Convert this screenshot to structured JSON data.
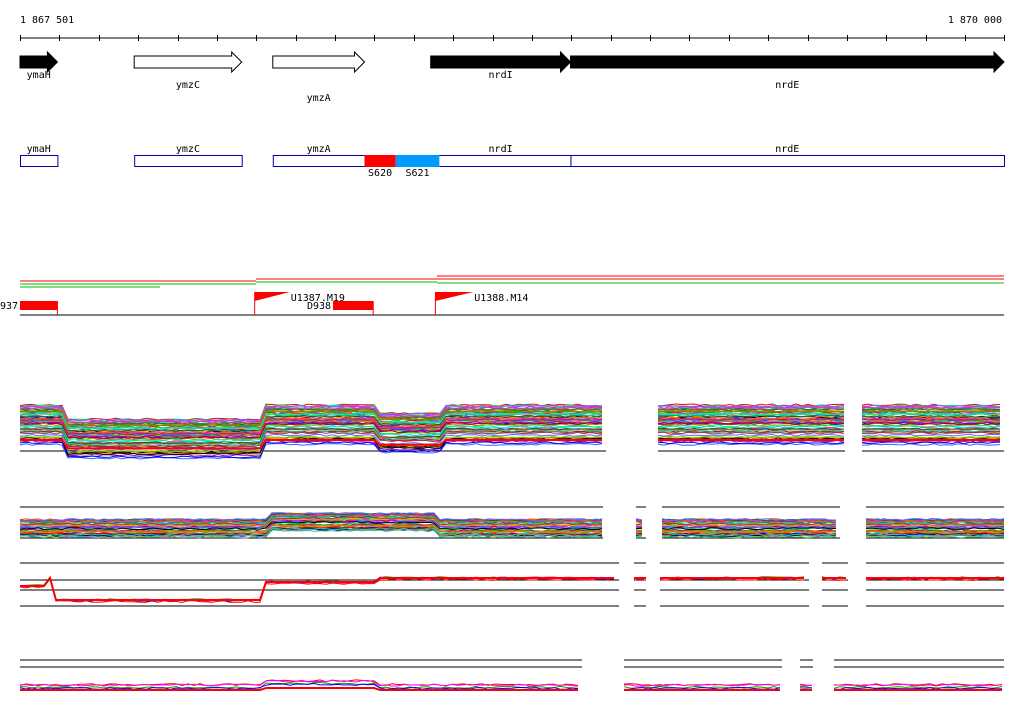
{
  "ruler": {
    "start_label": "1 867 501",
    "end_label": "1 870 000",
    "start_bp": 1867501,
    "end_bp": 1870000
  },
  "genes": [
    {
      "name": "ymaH",
      "start": 1867501,
      "end": 1867596,
      "strand": "+",
      "filled": true
    },
    {
      "name": "ymzC",
      "start": 1867791,
      "end": 1868064,
      "strand": "+",
      "filled": false
    },
    {
      "name": "ymzA",
      "start": 1868143,
      "end": 1868376,
      "strand": "+",
      "filled": false
    },
    {
      "name": "nrdI",
      "start": 1868544,
      "end": 1868899,
      "strand": "+",
      "filled": true
    },
    {
      "name": "nrdE",
      "start": 1868899,
      "end": 1870000,
      "strand": "+",
      "filled": true
    }
  ],
  "segments": [
    {
      "name": "S620",
      "color": "#ff0000",
      "start": 1868376,
      "end": 1868455
    },
    {
      "name": "S621",
      "color": "#0099ff",
      "start": 1868455,
      "end": 1868566
    }
  ],
  "features": [
    {
      "label": "937",
      "kind": "block",
      "start": 1867501,
      "end": 1867596
    },
    {
      "label": "U1387.M19",
      "kind": "flag",
      "start": 1868097,
      "end": 1868186
    },
    {
      "label": "D938",
      "kind": "block",
      "start": 1868296,
      "end": 1868398
    },
    {
      "label": "U1388.M14",
      "kind": "flag",
      "start": 1868556,
      "end": 1868652
    }
  ],
  "colors": {
    "gene_box": "#0000aa",
    "feature_red": "#ff0000",
    "accent_green": "#00bb00"
  }
}
